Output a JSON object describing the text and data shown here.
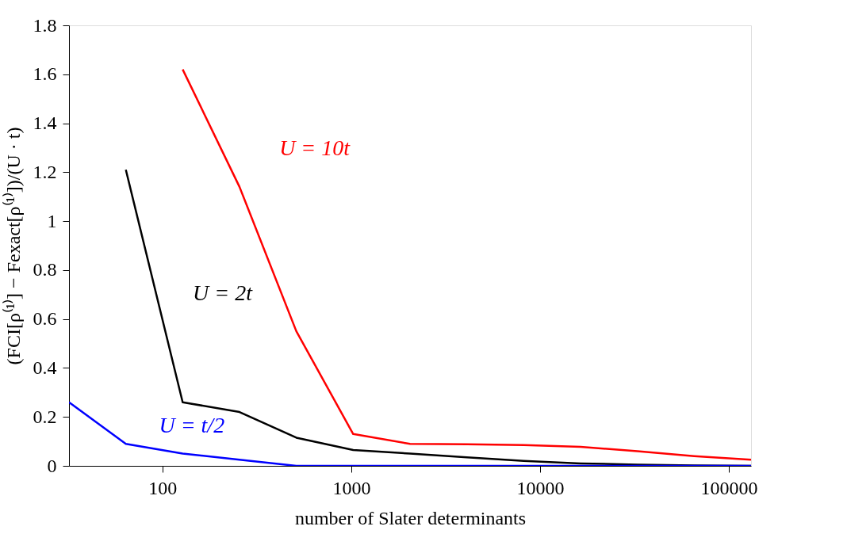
{
  "chart_data": {
    "type": "line",
    "xlabel": "number of Slater determinants",
    "ylabel": "(FCI[ρ⁽¹⁾] − Fexact[ρ⁽¹⁾])/(U · t)",
    "series": [
      {
        "color": "#ff0000",
        "x": [
          128,
          256,
          512,
          1024,
          2048,
          4096,
          8192,
          16384,
          32768,
          65536,
          131072
        ],
        "values": [
          1.62,
          1.14,
          0.55,
          0.13,
          0.09,
          0.088,
          0.085,
          0.078,
          0.06,
          0.04,
          0.025
        ]
      },
      {
        "color": "#000000",
        "x": [
          64,
          128,
          256,
          512,
          1024,
          2048,
          4096,
          8192,
          16384,
          32768,
          65536,
          131072
        ],
        "values": [
          1.21,
          0.26,
          0.22,
          0.115,
          0.065,
          0.05,
          0.035,
          0.02,
          0.01,
          0.005,
          0.002,
          0
        ]
      },
      {
        "color": "#0000ff",
        "x": [
          32,
          64,
          128,
          256,
          512,
          1024,
          2048,
          4096,
          8192,
          16384,
          32768,
          65536,
          131072
        ],
        "values": [
          0.26,
          0.09,
          0.05,
          0.025,
          0,
          0,
          0,
          0,
          0,
          0,
          0,
          0,
          0
        ]
      }
    ],
    "annotations": [
      "U = 10t",
      "U = 2t",
      "U = t/2"
    ],
    "log": "x",
    "xlim": [
      32,
      131072
    ],
    "xticks": [
      100,
      1000,
      10000,
      100000
    ],
    "ylim": [
      0,
      1.8
    ],
    "yticks": [
      0,
      0.2,
      0.4,
      0.6,
      0.8,
      1,
      1.2,
      1.4,
      1.6,
      1.8
    ],
    "grid": false,
    "legend": false,
    "marker": "none",
    "line_style": "solid"
  }
}
